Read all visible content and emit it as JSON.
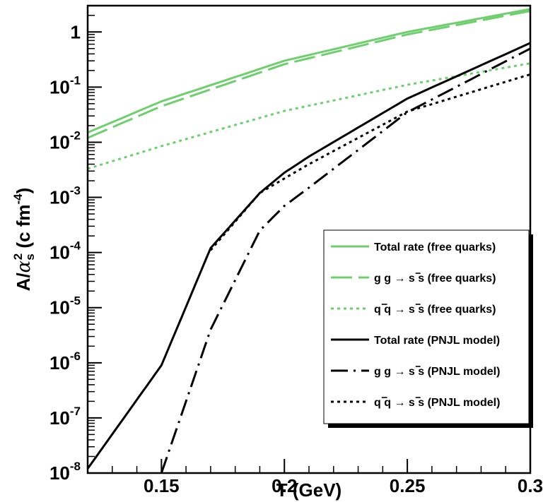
{
  "chart_data": {
    "type": "line",
    "xlabel": "T (GeV)",
    "ylabel_main": "A/",
    "ylabel_alpha": "α",
    "ylabel_sub": "s",
    "ylabel_sup": "2",
    "ylabel_units": " (c fm",
    "ylabel_units_sup": "-4",
    "ylabel_close": ")",
    "xlim": [
      0.12,
      0.3
    ],
    "ylim": [
      1e-08,
      3
    ],
    "yscale": "log",
    "x_ticks": [
      {
        "value": 0.15,
        "label": "0.15"
      },
      {
        "value": 0.2,
        "label": "0.2"
      },
      {
        "value": 0.25,
        "label": "0.25"
      },
      {
        "value": 0.3,
        "label": "0.3"
      }
    ],
    "y_ticks": [
      {
        "value": 1,
        "base": "1",
        "exp": ""
      },
      {
        "value": 0.1,
        "base": "10",
        "exp": "-1"
      },
      {
        "value": 0.01,
        "base": "10",
        "exp": "-2"
      },
      {
        "value": 0.001,
        "base": "10",
        "exp": "-3"
      },
      {
        "value": 0.0001,
        "base": "10",
        "exp": "-4"
      },
      {
        "value": 1e-05,
        "base": "10",
        "exp": "-5"
      },
      {
        "value": 1e-06,
        "base": "10",
        "exp": "-6"
      },
      {
        "value": 1e-07,
        "base": "10",
        "exp": "-7"
      },
      {
        "value": 1e-08,
        "base": "10",
        "exp": "-8"
      }
    ],
    "grid": false,
    "legend_position": "bottom-right",
    "colors": {
      "free": "#6fcf6f",
      "pnjl": "#000000"
    },
    "series": [
      {
        "name": "Total rate (free quarks)",
        "proc": "",
        "lhs": "",
        "color": "#6fcf6f",
        "style": "solid",
        "x": [
          0.12,
          0.15,
          0.2,
          0.25,
          0.3
        ],
        "y": [
          0.015,
          0.055,
          0.3,
          1.0,
          2.6
        ]
      },
      {
        "name": "(free quarks)",
        "proc": "g g",
        "lhs": "g g → s s",
        "color": "#6fcf6f",
        "style": "longdash",
        "x": [
          0.12,
          0.15,
          0.2,
          0.25,
          0.3
        ],
        "y": [
          0.012,
          0.045,
          0.26,
          0.9,
          2.4
        ]
      },
      {
        "name": "(free quarks)",
        "proc": "q q",
        "lhs": "q q → s s",
        "color": "#6fcf6f",
        "style": "dotted",
        "x": [
          0.12,
          0.15,
          0.2,
          0.25,
          0.3
        ],
        "y": [
          0.0033,
          0.0085,
          0.037,
          0.11,
          0.27
        ]
      },
      {
        "name": "Total rate (PNJL model)",
        "proc": "",
        "lhs": "",
        "color": "#000000",
        "style": "solid",
        "x": [
          0.12,
          0.15,
          0.17,
          0.19,
          0.2,
          0.21,
          0.25,
          0.3
        ],
        "y": [
          1.2e-08,
          9e-07,
          0.00012,
          0.0012,
          0.0028,
          0.0055,
          0.062,
          0.63
        ]
      },
      {
        "name": "(PNJL model)",
        "proc": "g g",
        "lhs": "g g → s s",
        "color": "#000000",
        "style": "dashdot",
        "x": [
          0.15,
          0.17,
          0.19,
          0.2,
          0.21,
          0.25,
          0.3
        ],
        "y": [
          1e-08,
          4e-06,
          0.00025,
          0.0007,
          0.0015,
          0.035,
          0.5
        ]
      },
      {
        "name": "(PNJL model)",
        "proc": "q q",
        "lhs": "q q → s s",
        "color": "#000000",
        "style": "dotted",
        "x": [
          0.17,
          0.19,
          0.2,
          0.21,
          0.25,
          0.3
        ],
        "y": [
          0.00011,
          0.0012,
          0.0022,
          0.004,
          0.036,
          0.17
        ]
      }
    ],
    "legend": [
      {
        "label": "Total rate (free quarks)"
      },
      {
        "label": "g g → s s (free quarks)"
      },
      {
        "label": "q q → s s (free quarks)"
      },
      {
        "label": "Total rate (PNJL model)"
      },
      {
        "label": "g g → s s (PNJL model)"
      },
      {
        "label": "q q → s s (PNJL model)"
      }
    ]
  }
}
